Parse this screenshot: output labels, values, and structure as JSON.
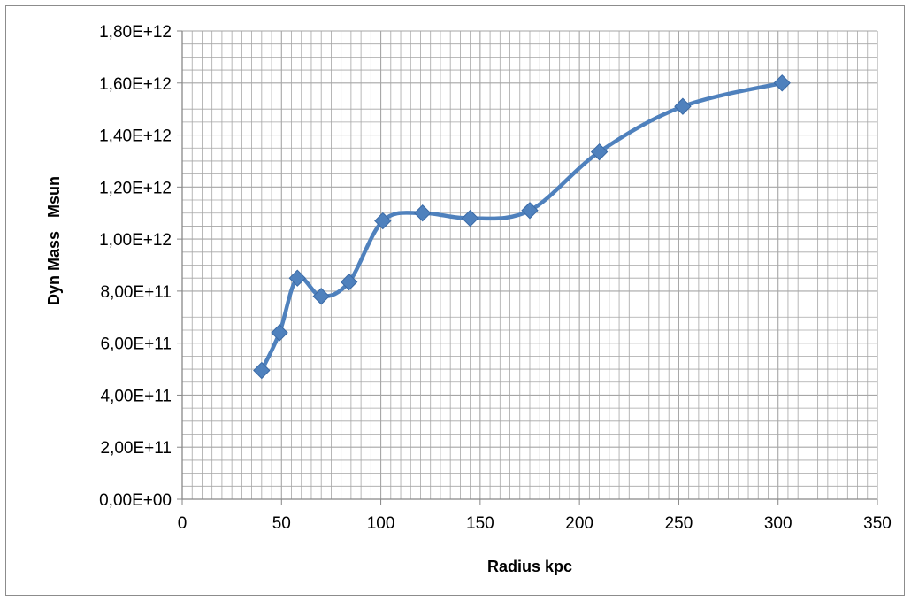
{
  "chart_data": {
    "type": "line",
    "title": "",
    "xlabel": "Radius kpc",
    "ylabel": "Dyn Mass   Msun",
    "xlim": [
      0,
      350
    ],
    "ylim": [
      0,
      1800000000000.0
    ],
    "x_ticks": [
      0,
      50,
      100,
      150,
      200,
      250,
      300,
      350
    ],
    "x_tick_labels": [
      "0",
      "50",
      "100",
      "150",
      "200",
      "250",
      "300",
      "350"
    ],
    "y_ticks": [
      0,
      200000000000.0,
      400000000000.0,
      600000000000.0,
      800000000000.0,
      1000000000000.0,
      1200000000000.0,
      1400000000000.0,
      1600000000000.0,
      1800000000000.0
    ],
    "y_tick_labels": [
      "0,00E+00",
      "2,00E+11",
      "4,00E+11",
      "6,00E+11",
      "8,00E+11",
      "1,00E+12",
      "1,20E+12",
      "1,40E+12",
      "1,60E+12",
      "1,80E+12"
    ],
    "grid": true,
    "legend": "none",
    "line_style": "smooth",
    "marker": "diamond",
    "colors": {
      "series": "#4f81bd",
      "marker": "#4f81bd",
      "grid": "#a6a6a6",
      "axis": "#868686",
      "frame": "#8c8c8c"
    },
    "series": [
      {
        "x": [
          40,
          49,
          58,
          70,
          84,
          101,
          121,
          145,
          175,
          210,
          252,
          302
        ],
        "y": [
          495000000000.0,
          640000000000.0,
          850000000000.0,
          780000000000.0,
          835000000000.0,
          1070000000000.0,
          1100000000000.0,
          1080000000000.0,
          1110000000000.0,
          1335000000000.0,
          1510000000000.0,
          1600000000000.0
        ]
      }
    ]
  }
}
